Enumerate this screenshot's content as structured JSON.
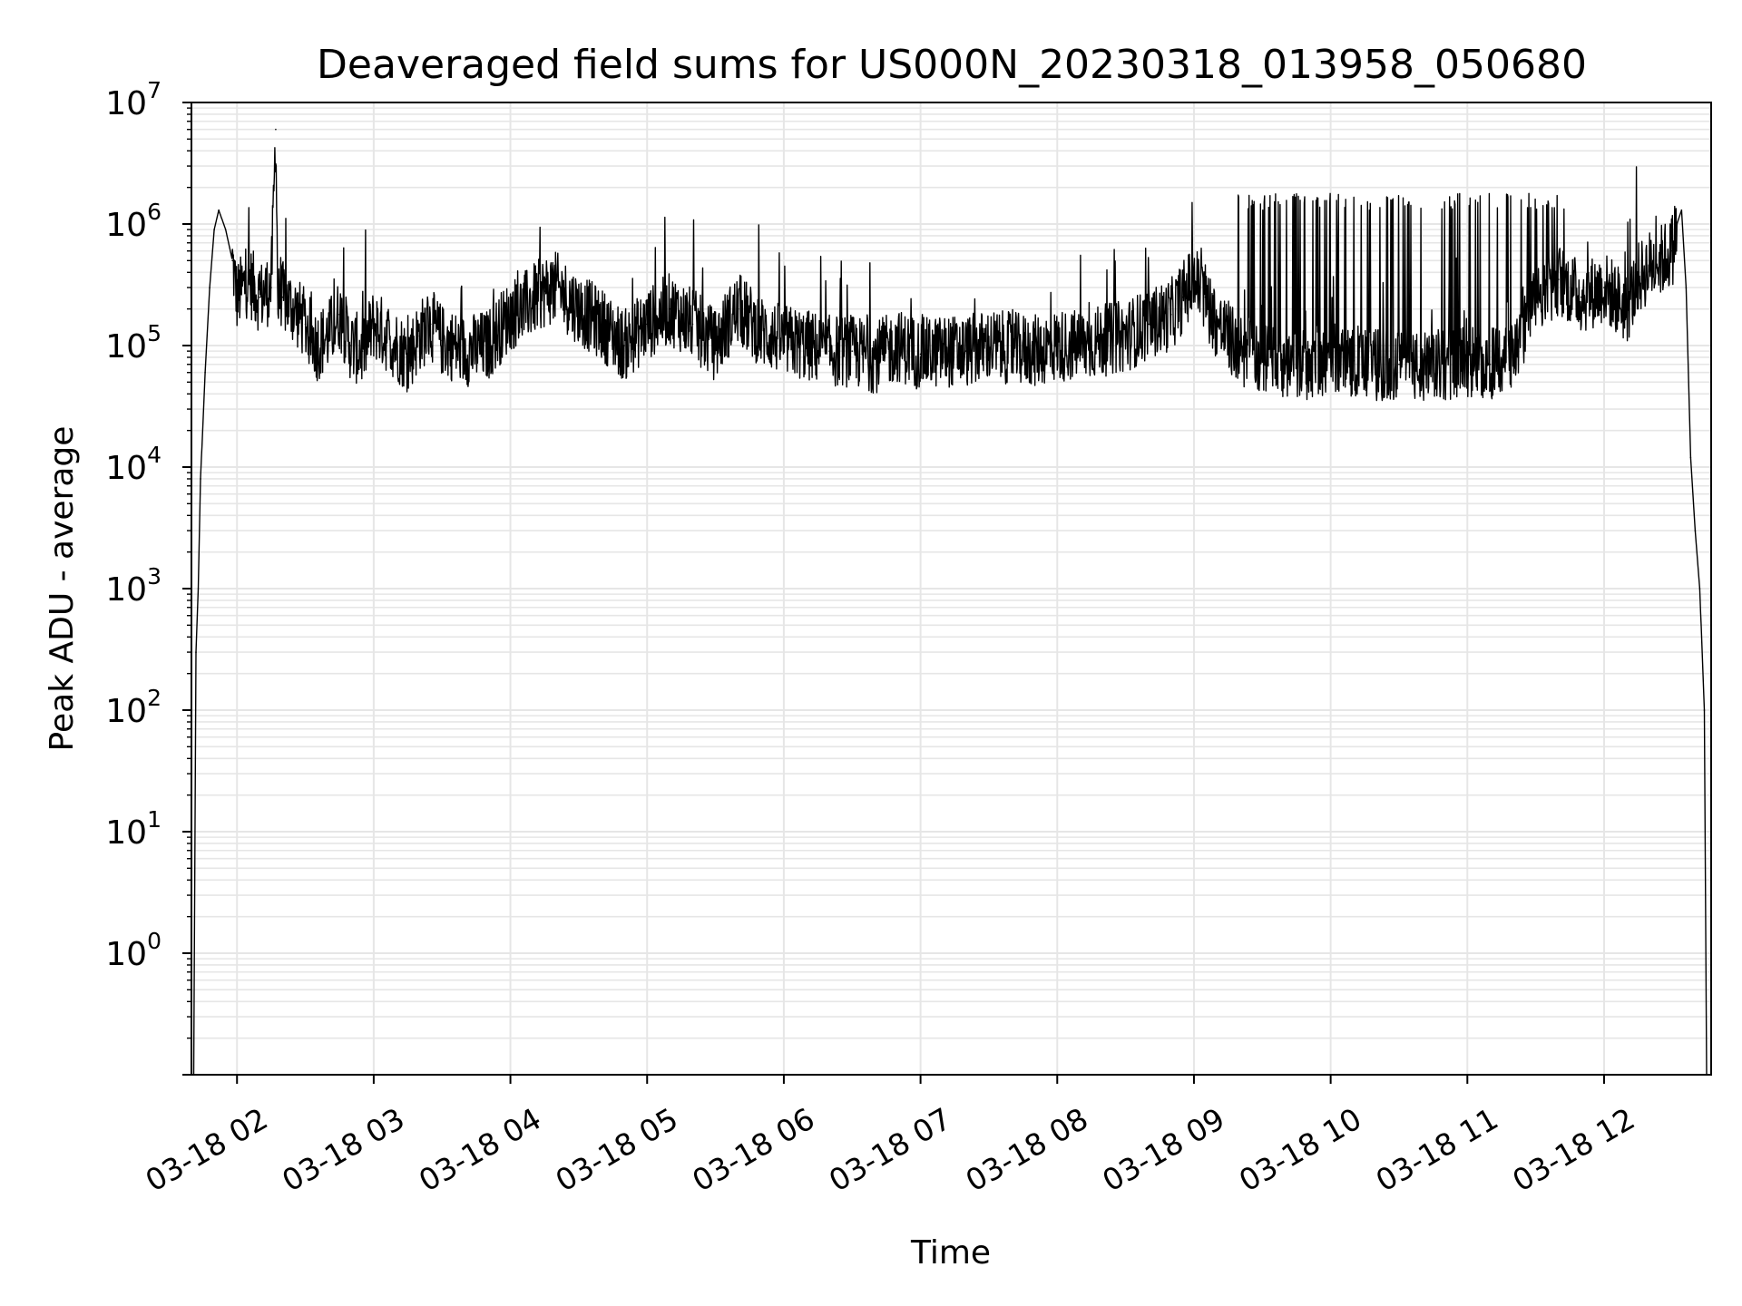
{
  "chart_data": {
    "type": "line",
    "title": "Deaveraged field sums for US000N_20230318_013958_050680",
    "xlabel": "Time",
    "ylabel": "Peak ADU - average",
    "yscale": "log",
    "ylim": [
      0.1,
      10000000
    ],
    "xlim": [
      "03-18 01:40",
      "03-18 12:47"
    ],
    "grid": true,
    "legend": "none",
    "line_color": "#000000",
    "grid_color": "#e6e6e6",
    "x_ticks": [
      "03-18 02",
      "03-18 03",
      "03-18 04",
      "03-18 05",
      "03-18 06",
      "03-18 07",
      "03-18 08",
      "03-18 09",
      "03-18 10",
      "03-18 11",
      "03-18 12"
    ],
    "x_tick_times": [
      "03-18 02:00",
      "03-18 03:00",
      "03-18 04:00",
      "03-18 05:00",
      "03-18 06:00",
      "03-18 07:00",
      "03-18 08:00",
      "03-18 09:00",
      "03-18 10:00",
      "03-18 11:00",
      "03-18 12:00"
    ],
    "y_ticks": [
      {
        "base": "10",
        "exp": "0",
        "value": 1
      },
      {
        "base": "10",
        "exp": "1",
        "value": 10
      },
      {
        "base": "10",
        "exp": "2",
        "value": 100
      },
      {
        "base": "10",
        "exp": "3",
        "value": 1000
      },
      {
        "base": "10",
        "exp": "4",
        "value": 10000
      },
      {
        "base": "10",
        "exp": "5",
        "value": 100000
      },
      {
        "base": "10",
        "exp": "6",
        "value": 1000000
      },
      {
        "base": "10",
        "exp": "7",
        "value": 10000000
      }
    ],
    "series": [
      {
        "x": [
          "03-18 01:41",
          "03-18 01:42",
          "03-18 01:43",
          "03-18 01:44",
          "03-18 01:46",
          "03-18 01:48",
          "03-18 01:50",
          "03-18 01:52",
          "03-18 01:55",
          "03-18 01:58",
          "03-18 02:00",
          "03-18 02:05",
          "03-18 02:10",
          "03-18 02:15",
          "03-18 02:17",
          "03-18 02:18",
          "03-18 02:19",
          "03-18 02:20",
          "03-18 02:25",
          "03-18 02:30",
          "03-18 02:35",
          "03-18 02:40",
          "03-18 02:45",
          "03-18 02:50",
          "03-18 02:55",
          "03-18 03:00",
          "03-18 03:10",
          "03-18 03:15",
          "03-18 03:20",
          "03-18 03:25",
          "03-18 03:30",
          "03-18 03:40",
          "03-18 03:50",
          "03-18 04:00",
          "03-18 04:05",
          "03-18 04:15",
          "03-18 04:20",
          "03-18 04:30",
          "03-18 04:40",
          "03-18 04:50",
          "03-18 05:00",
          "03-18 05:10",
          "03-18 05:20",
          "03-18 05:30",
          "03-18 05:35",
          "03-18 05:40",
          "03-18 05:50",
          "03-18 06:00",
          "03-18 06:10",
          "03-18 06:20",
          "03-18 06:30",
          "03-18 06:40",
          "03-18 06:50",
          "03-18 07:00",
          "03-18 07:10",
          "03-18 07:20",
          "03-18 07:30",
          "03-18 07:40",
          "03-18 07:50",
          "03-18 08:00",
          "03-18 08:10",
          "03-18 08:20",
          "03-18 08:30",
          "03-18 08:40",
          "03-18 08:50",
          "03-18 08:55",
          "03-18 09:00",
          "03-18 09:05",
          "03-18 09:10",
          "03-18 09:15",
          "03-18 09:20",
          "03-18 09:30",
          "03-18 09:40",
          "03-18 09:50",
          "03-18 10:00",
          "03-18 10:10",
          "03-18 10:20",
          "03-18 10:30",
          "03-18 10:40",
          "03-18 10:50",
          "03-18 11:00",
          "03-18 11:10",
          "03-18 11:20",
          "03-18 11:30",
          "03-18 11:35",
          "03-18 11:40",
          "03-18 11:50",
          "03-18 12:00",
          "03-18 12:05",
          "03-18 12:10",
          "03-18 12:15",
          "03-18 12:20",
          "03-18 12:25",
          "03-18 12:30",
          "03-18 12:32",
          "03-18 12:34",
          "03-18 12:36",
          "03-18 12:38",
          "03-18 12:40",
          "03-18 12:42",
          "03-18 12:44",
          "03-18 12:45",
          "03-18 12:46"
        ],
        "y": [
          0.1,
          300,
          1000,
          8000,
          60000,
          300000,
          900000,
          1300000,
          900000,
          500000,
          250000,
          350000,
          250000,
          300000,
          6000000,
          200000,
          300000,
          250000,
          200000,
          150000,
          100000,
          120000,
          180000,
          100000,
          90000,
          150000,
          100000,
          80000,
          120000,
          150000,
          110000,
          90000,
          100000,
          180000,
          200000,
          280000,
          300000,
          200000,
          150000,
          100000,
          150000,
          200000,
          150000,
          100000,
          150000,
          200000,
          130000,
          110000,
          100000,
          90000,
          90000,
          80000,
          100000,
          85000,
          90000,
          90000,
          100000,
          95000,
          90000,
          100000,
          100000,
          110000,
          120000,
          150000,
          180000,
          250000,
          350000,
          250000,
          150000,
          120000,
          90000,
          80000,
          75000,
          70000,
          80000,
          75000,
          70000,
          70000,
          65000,
          70000,
          75000,
          70000,
          80000,
          250000,
          300000,
          350000,
          250000,
          300000,
          250000,
          200000,
          350000,
          450000,
          500000,
          600000,
          1000000,
          1300000,
          300000,
          12000,
          3000,
          1000,
          100,
          0.1,
          0.1
        ]
      }
    ]
  }
}
